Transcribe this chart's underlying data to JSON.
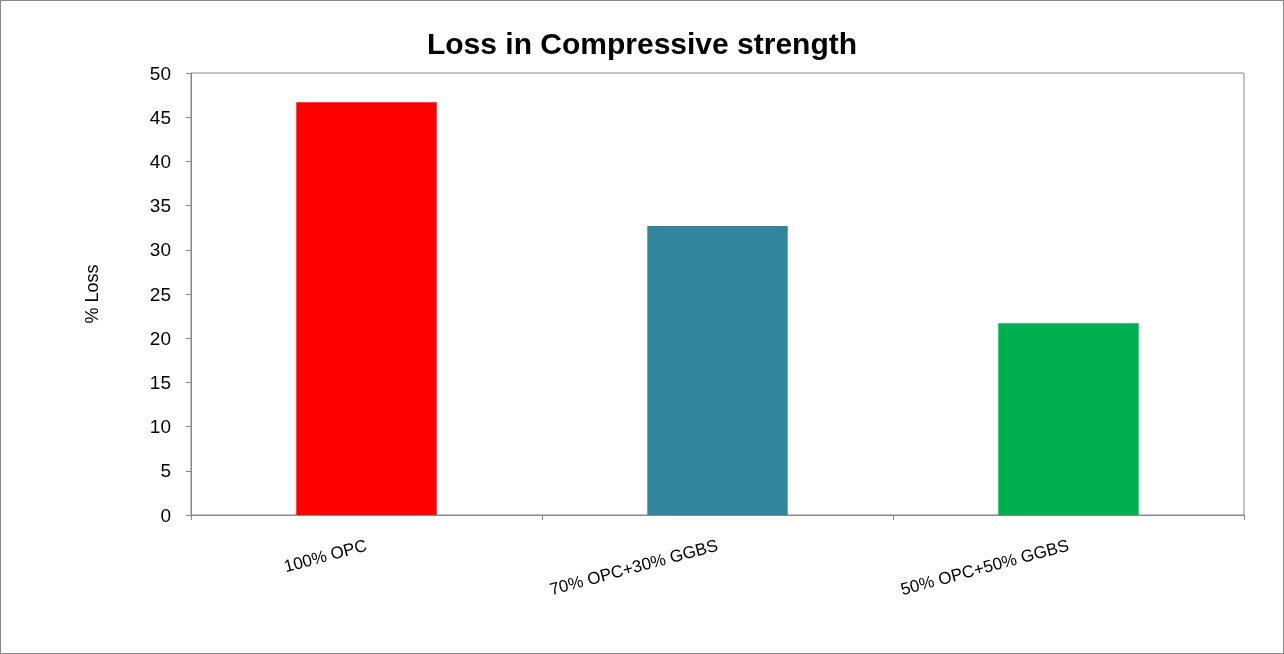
{
  "chart_data": {
    "type": "bar",
    "title": "Loss in Compressive strength",
    "ylabel": "% Loss",
    "categories": [
      "100% OPC",
      "70% OPC+30% GGBS",
      "50% OPC+50% GGBS"
    ],
    "values": [
      46.7,
      32.7,
      21.7
    ],
    "colors": [
      "#ff0000",
      "#31859c",
      "#00b050"
    ],
    "ylim": [
      0,
      50
    ],
    "yticks": [
      0,
      5,
      10,
      15,
      20,
      25,
      30,
      35,
      40,
      45,
      50
    ],
    "grid": false
  }
}
